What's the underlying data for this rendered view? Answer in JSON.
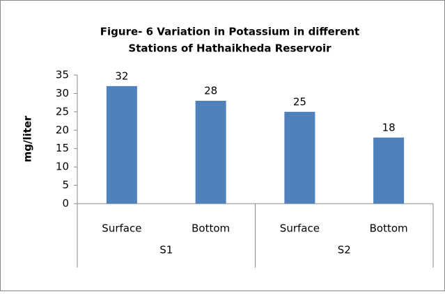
{
  "chart_data": {
    "type": "bar",
    "title": [
      "Figure- 6 Variation in Potassium in different",
      "Stations of Hathaikheda Reservoir"
    ],
    "y_label": "mg/liter",
    "categories": [
      "Surface",
      "Bottom",
      "Surface",
      "Bottom"
    ],
    "groups": [
      "S1",
      "S2"
    ],
    "values": [
      32,
      28,
      25,
      18
    ],
    "color": "#4f81bd",
    "ylim": [
      0,
      35
    ],
    "yticks": [
      0,
      5,
      10,
      15,
      20,
      25,
      30,
      35
    ],
    "grid": false
  }
}
